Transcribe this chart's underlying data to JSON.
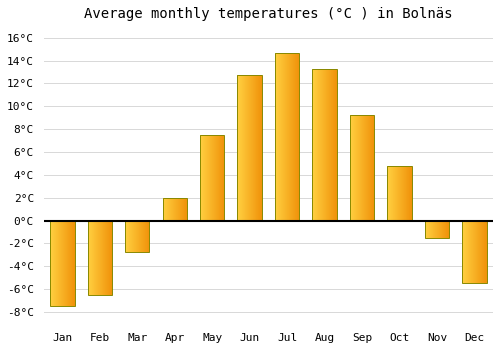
{
  "months": [
    "Jan",
    "Feb",
    "Mar",
    "Apr",
    "May",
    "Jun",
    "Jul",
    "Aug",
    "Sep",
    "Oct",
    "Nov",
    "Dec"
  ],
  "values": [
    -7.5,
    -6.5,
    -2.8,
    2.0,
    7.5,
    12.7,
    14.7,
    13.3,
    9.2,
    4.8,
    -1.5,
    -5.5
  ],
  "bar_color_left": "#FFD040",
  "bar_color_right": "#F0920A",
  "bar_edge_color": "#888800",
  "title": "Average monthly temperatures (°C ) in Bolnäs",
  "ylim": [
    -9,
    17
  ],
  "yticks": [
    -8,
    -6,
    -4,
    -2,
    0,
    2,
    4,
    6,
    8,
    10,
    12,
    14,
    16
  ],
  "ytick_labels": [
    "-8°C",
    "-6°C",
    "-4°C",
    "-2°C",
    "0°C",
    "2°C",
    "4°C",
    "6°C",
    "8°C",
    "10°C",
    "12°C",
    "14°C",
    "16°C"
  ],
  "background_color": "#ffffff",
  "grid_color": "#d8d8d8",
  "title_fontsize": 10,
  "tick_fontsize": 8,
  "bar_width": 0.65
}
